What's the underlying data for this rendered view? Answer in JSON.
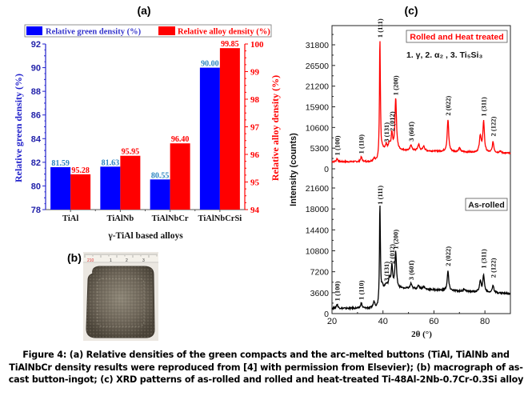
{
  "figure": {
    "caption": "Figure 4: (a) Relative densities of the green compacts and the arc-melted buttons (TiAl, TiAlNb and TiAlNbCr density results were reproduced from [4] with permission from Elsevier); (b) macrograph of as-cast button-ingot; (c) XRD patterns of as-rolled and rolled and heat-treated Ti-48Al-2Nb-0.7Cr-0.3Si alloy",
    "panel_labels": {
      "a": "(a)",
      "b": "(b)",
      "c": "(c)"
    },
    "panel_b": {
      "description": "macrograph of as-cast button-ingot with ruler",
      "ruler_marks": [
        "210",
        "1",
        "2",
        "3"
      ]
    }
  },
  "chart_data": [
    {
      "type": "bar",
      "title": "(a)",
      "categories": [
        "TiAl",
        "TiAlNb",
        "TiAlNbCr",
        "TiAlNbCrSi"
      ],
      "xlabel": "γ-TiAl based alloys",
      "series": [
        {
          "name": "Relative green density (%)",
          "axis": "left",
          "color": "#0000ff",
          "label_color": "#2e86c1",
          "values": [
            81.59,
            81.63,
            80.55,
            90.0
          ],
          "labels": [
            "81.59",
            "81.63",
            "80.55",
            "90.00"
          ]
        },
        {
          "name": "Relative alloy density (%)",
          "axis": "right",
          "color": "#ff0000",
          "label_color": "#ff0000",
          "values": [
            95.28,
            95.95,
            96.4,
            99.85
          ],
          "labels": [
            "95.28",
            "95.95",
            "96.40",
            "99.85"
          ]
        }
      ],
      "ylabel": "Relative green density (%)",
      "ylim": [
        78,
        92
      ],
      "yticks": [
        "78",
        "80",
        "82",
        "84",
        "86",
        "88",
        "90",
        "92"
      ],
      "y2label": "Relative alloy density (%)",
      "y2lim": [
        94,
        100
      ],
      "y2ticks": [
        "94",
        "95",
        "96",
        "97",
        "98",
        "99",
        "100"
      ],
      "legend": "top"
    },
    {
      "type": "line",
      "title": "(c)",
      "xlabel": "2θ (°)",
      "ylabel": "Intensity (counts)",
      "xlim": [
        20,
        90
      ],
      "xticks": [
        "20",
        "40",
        "60",
        "80"
      ],
      "phase_legend": "1. γ,   2. α₂ , 3. Ti₅Si₃",
      "series": [
        {
          "name": "Rolled and Heat treated",
          "color": "#ff0000",
          "ylim": [
            0,
            37000
          ],
          "yticks": [
            "0",
            "5300",
            "10600",
            "15900",
            "21200",
            "26500",
            "31800"
          ],
          "baseline": 1800,
          "peaks": [
            {
              "x": 22.0,
              "y": 2600,
              "label": "1 (100)"
            },
            {
              "x": 31.5,
              "y": 3000,
              "label": "1 (110)"
            },
            {
              "x": 38.8,
              "y": 32800,
              "label": "1 (111)"
            },
            {
              "x": 41.3,
              "y": 6000,
              "label": "3 (131)"
            },
            {
              "x": 43.5,
              "y": 8800,
              "label": "2 (012)"
            },
            {
              "x": 45.0,
              "y": 18000,
              "label": "1 (200)"
            },
            {
              "x": 51.0,
              "y": 6200,
              "label": "3 (601̄)"
            },
            {
              "x": 65.5,
              "y": 12800,
              "label": "2 (022)"
            },
            {
              "x": 79.5,
              "y": 12600,
              "label": "1 (311)"
            },
            {
              "x": 83.2,
              "y": 7500,
              "label": "2 (122)"
            }
          ]
        },
        {
          "name": "As-rolled",
          "color": "#000000",
          "ylim": [
            0,
            25000
          ],
          "yticks": [
            "0",
            "3600",
            "7200",
            "10800",
            "14400",
            "18000",
            "21600"
          ],
          "baseline": 900,
          "peaks": [
            {
              "x": 22.0,
              "y": 1600,
              "label": "1 (100)"
            },
            {
              "x": 31.5,
              "y": 1800,
              "label": "1 (110)"
            },
            {
              "x": 38.8,
              "y": 18200,
              "label": "1 (111)"
            },
            {
              "x": 41.3,
              "y": 5000,
              "label": "3 (131)"
            },
            {
              "x": 43.5,
              "y": 8000,
              "label": "2 (012)"
            },
            {
              "x": 45.0,
              "y": 10500,
              "label": "1 (200)"
            },
            {
              "x": 51.0,
              "y": 5200,
              "label": "3 (601̄)"
            },
            {
              "x": 65.5,
              "y": 7600,
              "label": "2 (022)"
            },
            {
              "x": 79.5,
              "y": 7200,
              "label": "1 (311)"
            },
            {
              "x": 83.2,
              "y": 5600,
              "label": "2 (122)"
            }
          ]
        }
      ]
    }
  ]
}
